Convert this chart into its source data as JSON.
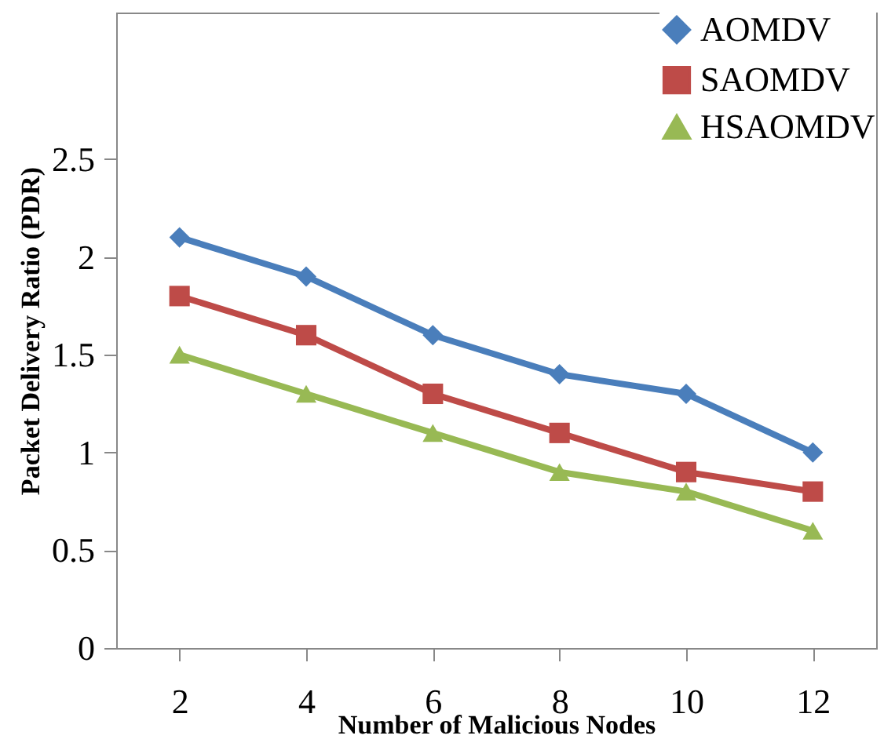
{
  "chart_data": {
    "type": "line",
    "xlabel": "Number of Malicious Nodes",
    "ylabel": "Packet Delivery Ratio (PDR)",
    "categories": [
      "2",
      "4",
      "6",
      "8",
      "10",
      "12"
    ],
    "ylim": [
      0,
      3.25
    ],
    "yticks": [
      0,
      0.5,
      1,
      1.5,
      2,
      2.5
    ],
    "grid": false,
    "legend": "top right",
    "line_style": "solid",
    "series": [
      {
        "name": "AOMDV",
        "color": "#4a7ebb",
        "marker": "diamond",
        "values": [
          2.1,
          1.9,
          1.6,
          1.4,
          1.3,
          1.0
        ]
      },
      {
        "name": "SAOMDV",
        "color": "#be4b48",
        "marker": "square",
        "values": [
          1.8,
          1.6,
          1.3,
          1.1,
          0.9,
          0.8
        ]
      },
      {
        "name": "HSAOMDV",
        "color": "#98b954",
        "marker": "triangle",
        "values": [
          1.5,
          1.3,
          1.1,
          0.9,
          0.8,
          0.6
        ]
      }
    ]
  }
}
